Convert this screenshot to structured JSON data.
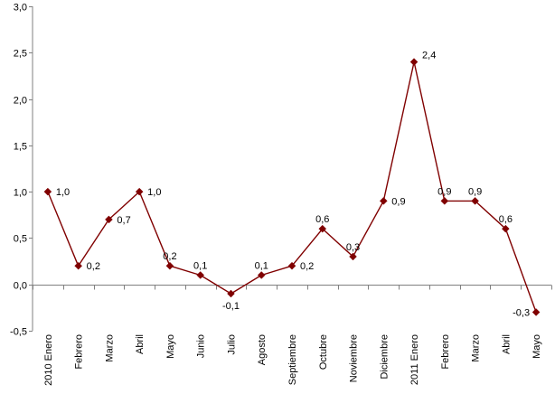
{
  "chart_data": {
    "type": "line",
    "title": "",
    "xlabel": "",
    "ylabel": "",
    "ylim": [
      -0.5,
      3.0
    ],
    "y_ticks": [
      -0.5,
      0.0,
      0.5,
      1.0,
      1.5,
      2.0,
      2.5,
      3.0
    ],
    "y_tick_labels": [
      "-0,5",
      "0,0",
      "0,5",
      "1,0",
      "1,5",
      "2,0",
      "2,5",
      "3,0"
    ],
    "grid": false,
    "legend": "none",
    "categories": [
      "2010 Enero",
      "Febrero",
      "Marzo",
      "Abril",
      "Mayo",
      "Junio",
      "Julio",
      "Agosto",
      "Septiembre",
      "Octubre",
      "Noviembre",
      "Diciembre",
      "2011 Enero",
      "Febrero",
      "Marzo",
      "Abril",
      "Mayo"
    ],
    "series": [
      {
        "values": [
          1.0,
          0.2,
          0.7,
          1.0,
          0.2,
          0.1,
          -0.1,
          0.1,
          0.2,
          0.6,
          0.3,
          0.9,
          2.4,
          0.9,
          0.9,
          0.6,
          -0.3
        ],
        "data_labels": [
          "1,0",
          "0,2",
          "0,7",
          "1,0",
          "0,2",
          "0,1",
          "-0,1",
          "0,1",
          "0,2",
          "0,6",
          "0,3",
          "0,9",
          "2,4",
          "0,9",
          "0,9",
          "0,6",
          "-0,3"
        ],
        "color": "#800000"
      }
    ],
    "axis_color": "#808080"
  }
}
